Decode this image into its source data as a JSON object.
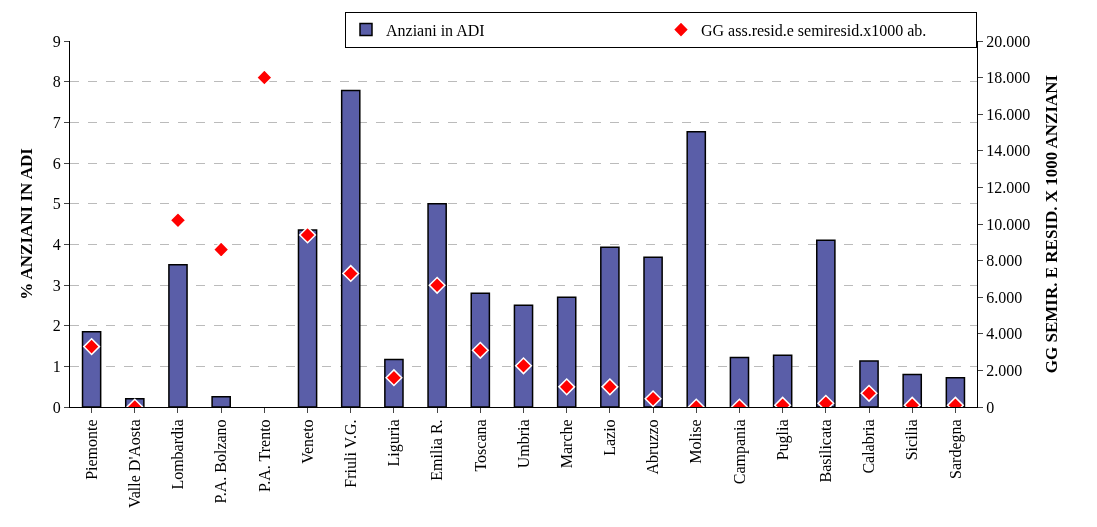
{
  "chart_data": {
    "type": "bar",
    "ylabel": "% ANZIANI IN ADI",
    "y2label": "GG SEMIR. E RESID. X 1000 ANZIANI",
    "categories": [
      "Piemonte",
      "Valle D'Aosta",
      "Lombardia",
      "P.A. Bolzano",
      "P.A. Trento",
      "Veneto",
      "Friuli V.G.",
      "Liguria",
      "Emilia R.",
      "Toscana",
      "Umbria",
      "Marche",
      "Lazio",
      "Abruzzo",
      "Molise",
      "Campania",
      "Puglia",
      "Basilicata",
      "Calabria",
      "Sicilia",
      "Sardegna"
    ],
    "series": [
      {
        "name": "Anziani in ADI",
        "color": "#5a5ea8",
        "values": [
          1.85,
          0.2,
          3.5,
          0.25,
          null,
          4.35,
          7.78,
          1.17,
          5.0,
          2.8,
          2.5,
          2.7,
          3.93,
          3.68,
          6.77,
          1.22,
          1.27,
          4.1,
          1.13,
          0.8,
          0.72
        ]
      },
      {
        "name": "GG ass.resid.e semiresid.x1000 ab.",
        "type": "scatter",
        "axis": "y2",
        "color": "#ff0000",
        "marker": "diamond",
        "values": [
          3300,
          0,
          10200,
          8600,
          18000,
          9400,
          7300,
          1600,
          6650,
          3100,
          2250,
          1100,
          1100,
          450,
          0,
          0,
          100,
          200,
          750,
          100,
          100
        ]
      }
    ],
    "ylim": [
      0,
      9
    ],
    "yticks": [
      0,
      1,
      2,
      3,
      4,
      5,
      6,
      7,
      8,
      9
    ],
    "y2lim": [
      0,
      20000
    ],
    "y2ticks": [
      0,
      {
        "value": 2000,
        "label": "2.000"
      },
      {
        "value": 4000,
        "label": "4.000"
      },
      {
        "value": 6000,
        "label": "6.000"
      },
      {
        "value": 8000,
        "label": "8.000"
      },
      {
        "value": 10000,
        "label": "10.000"
      },
      {
        "value": 12000,
        "label": "12.000"
      },
      {
        "value": 14000,
        "label": "14.000"
      },
      {
        "value": 16000,
        "label": "16.000"
      },
      {
        "value": 18000,
        "label": "18.000"
      },
      {
        "value": 20000,
        "label": "20.000"
      }
    ],
    "grid": "y",
    "legend": "top right"
  }
}
